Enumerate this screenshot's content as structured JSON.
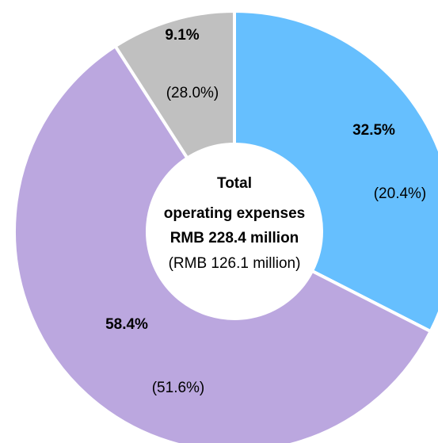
{
  "chart_data": {
    "type": "donut",
    "categories": [
      null,
      null,
      null
    ],
    "values": [
      32.5,
      58.4,
      9.1
    ],
    "value_labels": [
      "32.5%",
      "58.4%",
      "9.1%"
    ],
    "comparison_values": [
      20.4,
      51.6,
      28.0
    ],
    "comparison_labels": [
      "(20.4%)",
      "(51.6%)",
      "(28.0%)"
    ],
    "colors": [
      "#66bffe",
      "#bba7df",
      "#c0c0c0"
    ],
    "center_text": [
      "Total",
      "operating expenses",
      "RMB 228.4 million",
      "(RMB 126.1 million)"
    ]
  }
}
